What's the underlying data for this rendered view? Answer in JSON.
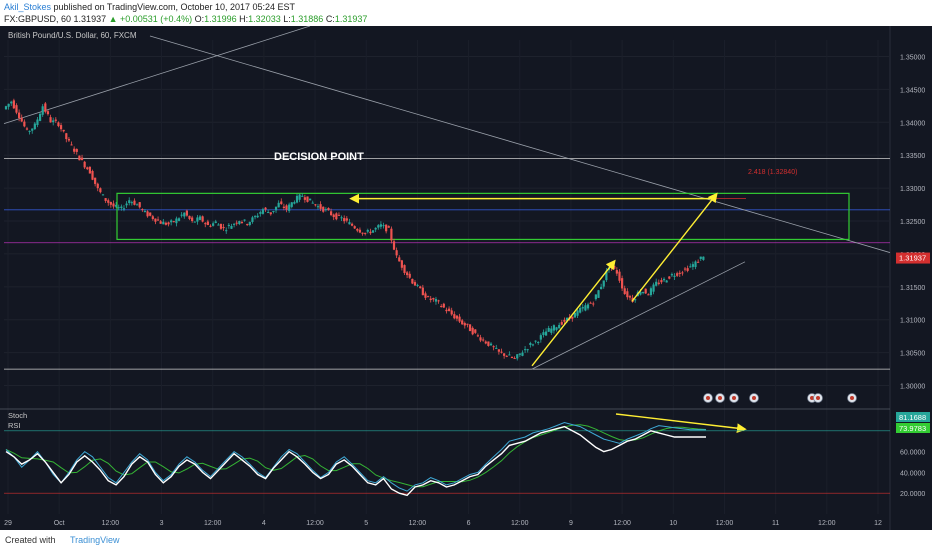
{
  "header": {
    "user": "Akil_Stokes",
    "published": "published on TradingView.com, October 10, 2017 05:24 EST",
    "symbol": "FX:GBPUSD, 60",
    "last": "1.31937",
    "change": "▲ +0.00531 (+0.4%)",
    "ohlc_o_label": "O:",
    "ohlc_o": "1.31996",
    "ohlc_h_label": "H:",
    "ohlc_h": "1.32033",
    "ohlc_l_label": "L:",
    "ohlc_l": "1.31886",
    "ohlc_c_label": "C:",
    "ohlc_c": "1.31937"
  },
  "footer": {
    "created": "Created with",
    "brand": "TradingView"
  },
  "colors": {
    "background": "#131722",
    "up": "#26a69a",
    "down": "#ef5350",
    "box": "#33cc33",
    "arrow": "#ffee33",
    "price_tag": "#d32f2f",
    "stoch_tag": "#26a69a",
    "rsi_tag": "#33cc33",
    "rsi_line": "#ffffff",
    "stoch_k": "#3fa9d6",
    "stoch_d": "#35b435"
  },
  "chart_data": {
    "type": "line",
    "title": "British Pound/U.S. Dollar, 60, FXCM",
    "xlabel": "",
    "ylabel": "",
    "x_ticks": [
      "29",
      "Oct",
      "12:00",
      "3",
      "12:00",
      "4",
      "12:00",
      "5",
      "12:00",
      "6",
      "12:00",
      "9",
      "12:00",
      "10",
      "12:00",
      "11",
      "12:00",
      "12"
    ],
    "y_ticks": [
      "1.35000",
      "1.34500",
      "1.34000",
      "1.33500",
      "1.33000",
      "1.32500",
      "1.32000",
      "1.31500",
      "1.31000",
      "1.30500",
      "1.30000"
    ],
    "ylim": [
      1.2975,
      1.3525
    ],
    "last_price": "1.31937",
    "annotation": "DECISION POINT",
    "zone": {
      "y_low": 1.3222,
      "y_high": 1.3292,
      "label": "2.418 (1.32840)"
    },
    "price_path": [
      1.342,
      1.3432,
      1.341,
      1.3385,
      1.3395,
      1.3425,
      1.3402,
      1.3398,
      1.3375,
      1.3358,
      1.334,
      1.3325,
      1.3298,
      1.3282,
      1.3272,
      1.3268,
      1.3282,
      1.3275,
      1.3262,
      1.3255,
      1.3248,
      1.3245,
      1.3252,
      1.3262,
      1.3248,
      1.3254,
      1.3243,
      1.3248,
      1.3238,
      1.3244,
      1.3252,
      1.3247,
      1.3256,
      1.3268,
      1.3262,
      1.3276,
      1.3268,
      1.3282,
      1.3289,
      1.328,
      1.3272,
      1.3266,
      1.3258,
      1.3254,
      1.3246,
      1.3238,
      1.3231,
      1.3236,
      1.3243,
      1.3236,
      1.3195,
      1.3175,
      1.3158,
      1.3145,
      1.3132,
      1.3128,
      1.3118,
      1.3108,
      1.3098,
      1.3089,
      1.3078,
      1.3069,
      1.306,
      1.305,
      1.3046,
      1.304,
      1.3052,
      1.3062,
      1.307,
      1.3082,
      1.3088,
      1.3096,
      1.3102,
      1.3112,
      1.312,
      1.3128,
      1.3152,
      1.3182,
      1.3172,
      1.314,
      1.313,
      1.3145,
      1.314,
      1.3155,
      1.316,
      1.3168,
      1.3172,
      1.3178,
      1.3186,
      1.3198
    ],
    "series": [
      {
        "name": "Stoch",
        "last": "81.1688",
        "values": [
          62,
          55,
          45,
          52,
          60,
          50,
          38,
          30,
          40,
          52,
          60,
          55,
          45,
          35,
          30,
          40,
          50,
          58,
          52,
          40,
          32,
          38,
          48,
          55,
          50,
          42,
          36,
          44,
          52,
          60,
          55,
          48,
          40,
          35,
          45,
          55,
          62,
          58,
          50,
          42,
          35,
          40,
          50,
          55,
          48,
          40,
          32,
          30,
          36,
          30,
          25,
          22,
          28,
          30,
          35,
          32,
          28,
          30,
          34,
          38,
          40,
          48,
          55,
          62,
          70,
          72,
          74,
          78,
          80,
          82,
          85,
          88,
          86,
          84,
          80,
          76,
          72,
          70,
          68,
          72,
          75,
          78,
          82,
          85,
          84,
          83,
          82,
          81,
          81,
          81
        ]
      },
      {
        "name": "RSI",
        "last": "73.9783",
        "values": [
          60,
          55,
          48,
          52,
          58,
          50,
          40,
          30,
          38,
          50,
          56,
          50,
          42,
          32,
          28,
          36,
          48,
          55,
          50,
          38,
          30,
          36,
          46,
          52,
          48,
          40,
          34,
          42,
          50,
          58,
          52,
          46,
          38,
          34,
          44,
          52,
          60,
          55,
          48,
          40,
          34,
          38,
          48,
          52,
          46,
          38,
          30,
          28,
          34,
          24,
          20,
          18,
          26,
          28,
          32,
          30,
          26,
          28,
          32,
          36,
          38,
          46,
          52,
          58,
          66,
          68,
          70,
          74,
          78,
          80,
          82,
          84,
          80,
          76,
          70,
          64,
          60,
          62,
          66,
          70,
          72,
          76,
          80,
          78,
          76,
          74,
          74,
          74,
          74,
          74
        ]
      }
    ],
    "osc_y_ticks": [
      "60.0000",
      "40.0000",
      "20.0000"
    ],
    "osc_ylim": [
      0,
      100
    ]
  }
}
